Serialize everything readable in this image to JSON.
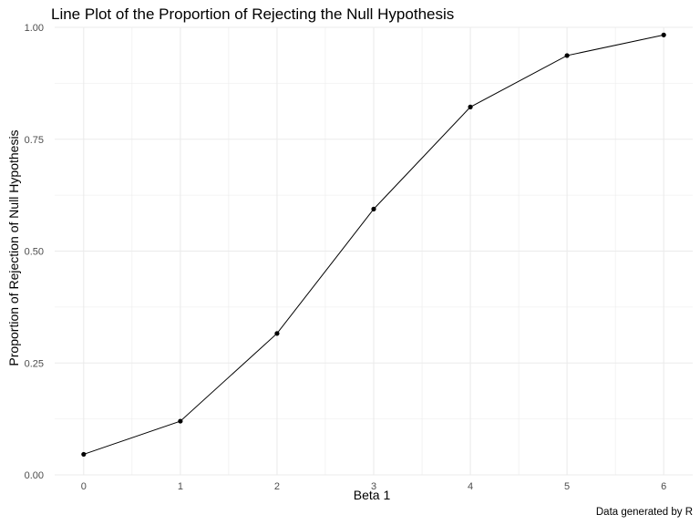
{
  "chart_data": {
    "type": "line",
    "title": "Line Plot of the Proportion of Rejecting the Null Hypothesis",
    "xlabel": "Beta 1",
    "ylabel": "Proportion of Rejection of Null Hypothesis",
    "caption": "Data generated by R",
    "x": [
      0,
      1,
      2,
      3,
      4,
      5,
      6
    ],
    "y": [
      0.046,
      0.12,
      0.316,
      0.594,
      0.822,
      0.937,
      0.983
    ],
    "xlim": [
      -0.3,
      6.3
    ],
    "ylim": [
      0.0,
      1.0
    ],
    "x_ticks": [
      0,
      1,
      2,
      3,
      4,
      5,
      6
    ],
    "x_tick_labels": [
      "0",
      "1",
      "2",
      "3",
      "4",
      "5",
      "6"
    ],
    "y_ticks": [
      0.0,
      0.25,
      0.5,
      0.75,
      1.0
    ],
    "y_tick_labels": [
      "0.00",
      "0.25",
      "0.50",
      "0.75",
      "1.00"
    ],
    "grid": true,
    "line_color": "#000000",
    "point_color": "#000000",
    "grid_color": "#ebebeb"
  }
}
